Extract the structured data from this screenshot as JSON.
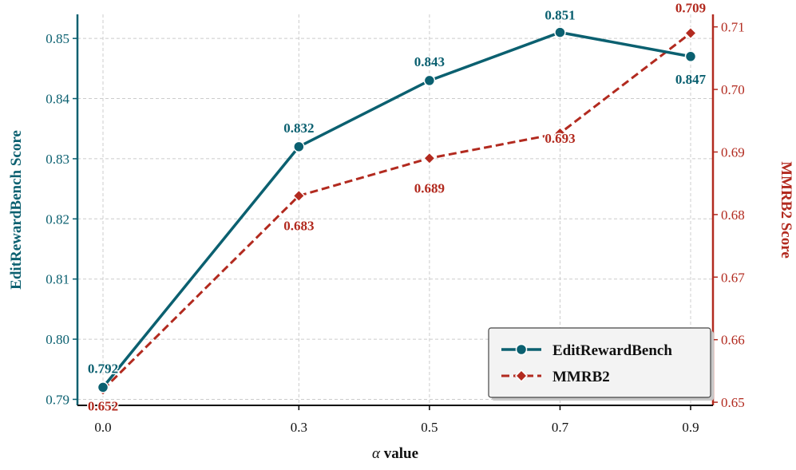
{
  "chart_data": {
    "type": "line",
    "x": [
      0.0,
      0.3,
      0.5,
      0.7,
      0.9
    ],
    "x_tick_labels": [
      "0.0",
      "0.3",
      "0.5",
      "0.7",
      "0.9"
    ],
    "xlabel_symbol": "α",
    "xlabel_text": " value",
    "y1label": "EditRewardBench Score",
    "y2label": "MMRB2 Score",
    "y1lim": [
      0.789,
      0.854
    ],
    "y2lim": [
      0.6495,
      0.712
    ],
    "y1_ticks": [
      "0.79",
      "0.80",
      "0.81",
      "0.82",
      "0.83",
      "0.84",
      "0.85"
    ],
    "y2_ticks": [
      "0.65",
      "0.66",
      "0.67",
      "0.68",
      "0.69",
      "0.70",
      "0.71"
    ],
    "grid": true,
    "legend_position": "bottom-right",
    "series": [
      {
        "name": "EditRewardBench",
        "axis": "left",
        "values": [
          0.792,
          0.832,
          0.843,
          0.851,
          0.847
        ],
        "labels": [
          "0.792",
          "0.832",
          "0.843",
          "0.851",
          "0.847"
        ],
        "color": "#0b6070",
        "line_style": "solid",
        "marker": "circle"
      },
      {
        "name": "MMRB2",
        "axis": "right",
        "values": [
          0.652,
          0.683,
          0.689,
          0.693,
          0.709
        ],
        "labels": [
          "0.652",
          "0.683",
          "0.689",
          "0.693",
          "0.709"
        ],
        "color": "#b22a1f",
        "line_style": "dashed",
        "marker": "diamond"
      }
    ]
  }
}
